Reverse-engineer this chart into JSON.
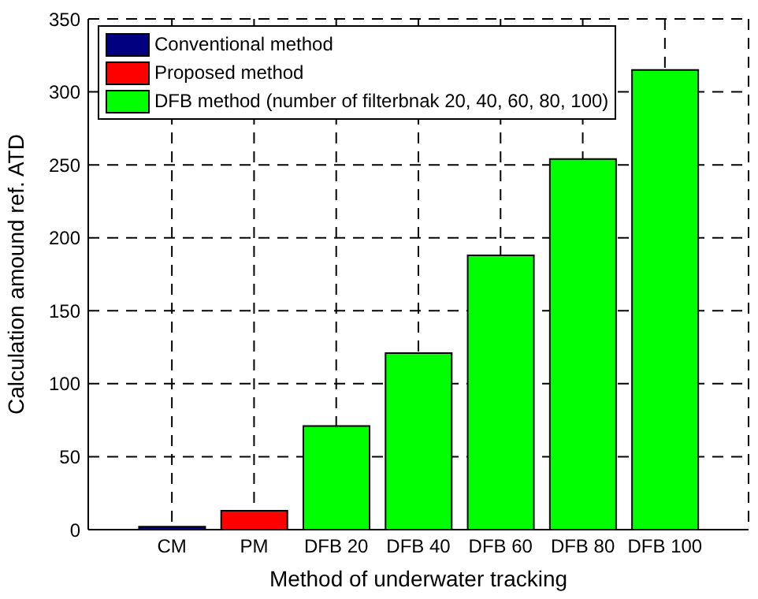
{
  "chart_data": {
    "type": "bar",
    "xlabel": "Method of underwater tracking",
    "ylabel": "Calculation amound ref. ATD",
    "categories": [
      "CM",
      "PM",
      "DFB 20",
      "DFB 40",
      "DFB 60",
      "DFB 80",
      "DFB 100"
    ],
    "series": [
      {
        "name": "Conventional method",
        "color": "#000080",
        "values": [
          2,
          null,
          null,
          null,
          null,
          null,
          null
        ]
      },
      {
        "name": "Proposed method",
        "color": "#ff0000",
        "values": [
          null,
          13,
          null,
          null,
          null,
          null,
          null
        ]
      },
      {
        "name": "DFB method (number of filterbnak 20, 40, 60, 80, 100)",
        "color": "#00ff00",
        "values": [
          null,
          null,
          71,
          121,
          188,
          254,
          315
        ]
      }
    ],
    "ylim": [
      0,
      350
    ],
    "yticks": [
      0,
      50,
      100,
      150,
      200,
      250,
      300,
      350
    ],
    "grid": true,
    "legend": "top left"
  }
}
